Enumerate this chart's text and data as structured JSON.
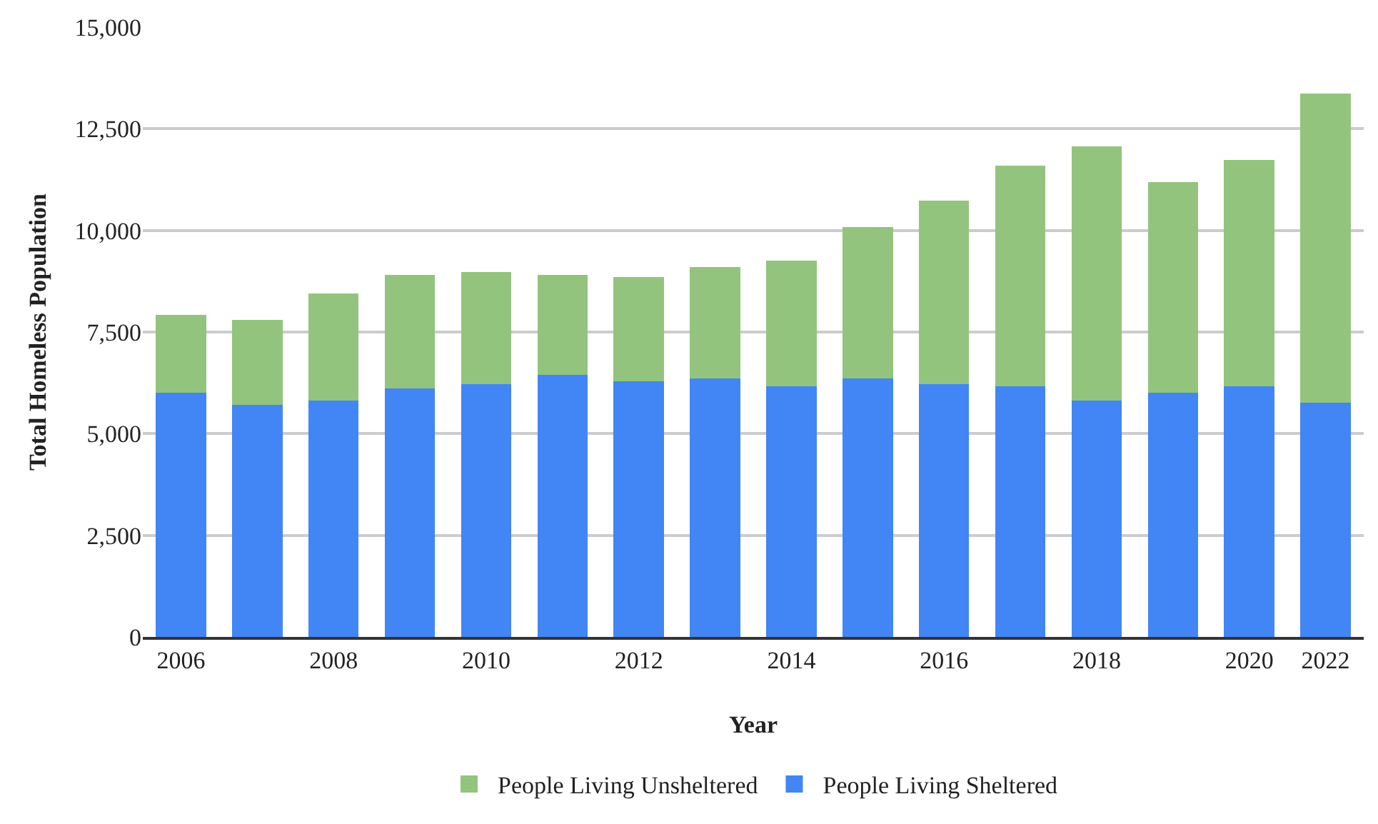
{
  "chart_data": {
    "type": "bar",
    "stacked": true,
    "xlabel": "Year",
    "ylabel": "Total Homeless Population",
    "categories": [
      "2006",
      null,
      "2008",
      null,
      "2010",
      null,
      "2012",
      null,
      "2014",
      null,
      "2016",
      null,
      "2018",
      null,
      "2020",
      "2022"
    ],
    "series": [
      {
        "name": "People Living Sheltered",
        "color": "#4285f4",
        "values": [
          6000,
          5700,
          5810,
          6110,
          6220,
          6450,
          6290,
          6350,
          6170,
          6350,
          6220,
          6170,
          5810,
          6000,
          6170,
          5760
        ]
      },
      {
        "name": "People Living Unsheltered",
        "color": "#93c47d",
        "values": [
          1920,
          2100,
          2640,
          2800,
          2760,
          2460,
          2570,
          2740,
          3090,
          3740,
          4520,
          5430,
          6260,
          5190,
          5560,
          7610
        ]
      }
    ],
    "ylim": [
      0,
      15000
    ],
    "yticks": [
      {
        "value": 0,
        "label": "0"
      },
      {
        "value": 2500,
        "label": "2,500"
      },
      {
        "value": 5000,
        "label": "5,000"
      },
      {
        "value": 7500,
        "label": "7,500"
      },
      {
        "value": 10000,
        "label": "10,000"
      },
      {
        "value": 12500,
        "label": "12,500"
      },
      {
        "value": 15000,
        "label": "15,000"
      }
    ],
    "grid": "y",
    "legend": "bottom"
  }
}
